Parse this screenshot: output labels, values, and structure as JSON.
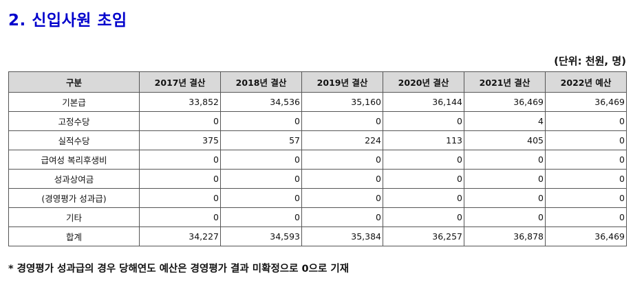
{
  "title": "2. 신입사원 초임",
  "unit_note": "(단위: 천원, 명)",
  "table": {
    "headers": [
      "구분",
      "2017년 결산",
      "2018년 결산",
      "2019년 결산",
      "2020년 결산",
      "2021년 결산",
      "2022년 예산"
    ],
    "rows": [
      {
        "label": "기본급",
        "values": [
          "33,852",
          "34,536",
          "35,160",
          "36,144",
          "36,469",
          "36,469"
        ]
      },
      {
        "label": "고정수당",
        "values": [
          "0",
          "0",
          "0",
          "0",
          "4",
          "0"
        ]
      },
      {
        "label": "실적수당",
        "values": [
          "375",
          "57",
          "224",
          "113",
          "405",
          "0"
        ]
      },
      {
        "label": "급여성 복리후생비",
        "values": [
          "0",
          "0",
          "0",
          "0",
          "0",
          "0"
        ]
      },
      {
        "label": "성과상여금",
        "values": [
          "0",
          "0",
          "0",
          "0",
          "0",
          "0"
        ]
      },
      {
        "label": "(경영평가 성과급)",
        "values": [
          "0",
          "0",
          "0",
          "0",
          "0",
          "0"
        ]
      },
      {
        "label": "기타",
        "values": [
          "0",
          "0",
          "0",
          "0",
          "0",
          "0"
        ]
      },
      {
        "label": "합계",
        "values": [
          "34,227",
          "34,593",
          "35,384",
          "36,257",
          "36,878",
          "36,469"
        ]
      }
    ]
  },
  "footnote": "* 경영평가 성과급의 경우 당해연도 예산은 경영평가 결과 미확정으로 0으로 기재"
}
